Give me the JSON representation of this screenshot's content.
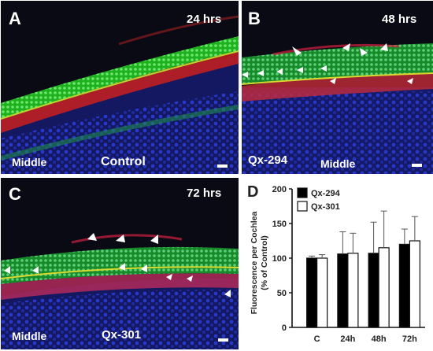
{
  "panels": {
    "A": {
      "letter": "A",
      "time": "24 hrs",
      "region": "Middle",
      "condition": "Control"
    },
    "B": {
      "letter": "B",
      "time": "48 hrs",
      "drug": "Qx-294",
      "region": "Middle"
    },
    "C": {
      "letter": "C",
      "time": "72 hrs",
      "region": "Middle",
      "drug": "Qx-301"
    },
    "D": {
      "letter": "D"
    }
  },
  "chart_data": {
    "type": "bar",
    "ylabel_line1": "Fluorescence per Cochlea",
    "ylabel_line2": "(% of Control)",
    "categories": [
      "C",
      "24h",
      "48h",
      "72h"
    ],
    "ylim": [
      0,
      200
    ],
    "yticks": [
      "0",
      "50",
      "100",
      "150",
      "200"
    ],
    "legend_position": "top-left",
    "series": [
      {
        "name": "Qx-294",
        "color": "#000000",
        "values": [
          100,
          106,
          107,
          120
        ],
        "errors": [
          3,
          32,
          45,
          22
        ]
      },
      {
        "name": "Qx-301",
        "color": "#ffffff",
        "values": [
          100,
          107,
          115,
          125
        ],
        "errors": [
          5,
          29,
          53,
          35
        ]
      }
    ]
  }
}
